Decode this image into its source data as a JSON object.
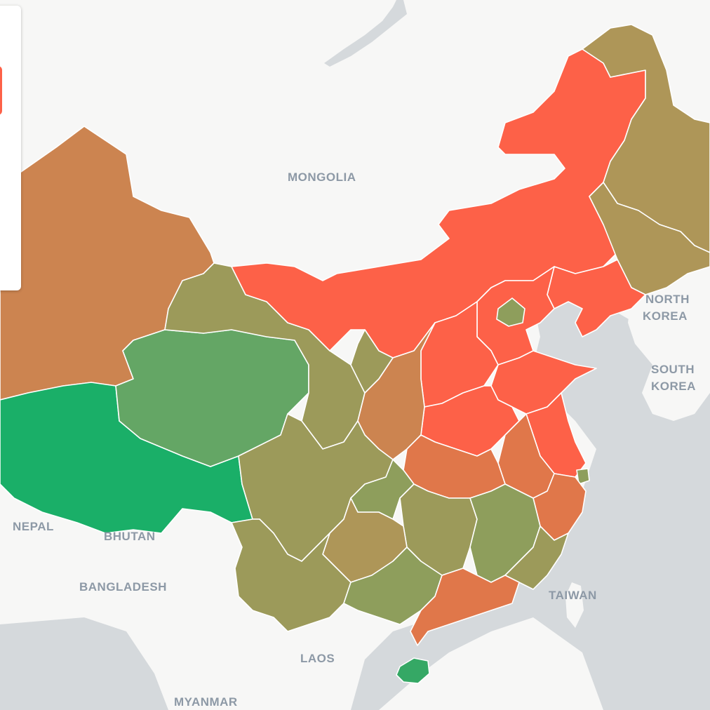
{
  "map": {
    "country_labels": [
      {
        "id": "mongolia",
        "text": "MONGOLIA"
      },
      {
        "id": "north-korea-1",
        "text": "NORTH"
      },
      {
        "id": "north-korea-2",
        "text": "KOREA"
      },
      {
        "id": "south-korea-1",
        "text": "SOUTH"
      },
      {
        "id": "south-korea-2",
        "text": "KOREA"
      },
      {
        "id": "nepal",
        "text": "NEPAL"
      },
      {
        "id": "bhutan",
        "text": "BHUTAN"
      },
      {
        "id": "bangladesh",
        "text": "BANGLADESH"
      },
      {
        "id": "taiwan",
        "text": "TAIWAN"
      },
      {
        "id": "laos",
        "text": "LAOS"
      },
      {
        "id": "myanmar",
        "text": "MYANMAR"
      }
    ],
    "colors": {
      "background_land": "#f7f7f6",
      "water": "#d5d9dc",
      "border": "#ffffff",
      "red": "#fd6148",
      "orange": "#e0774a",
      "brown": "#cc8450",
      "tan": "#ae9658",
      "olive": "#9c9a5a",
      "olive_green": "#8e9e5c",
      "green_medium": "#64a665",
      "green": "#1aaf68",
      "green_hainan": "#35a865",
      "panel_tab": "#fd6148"
    }
  }
}
